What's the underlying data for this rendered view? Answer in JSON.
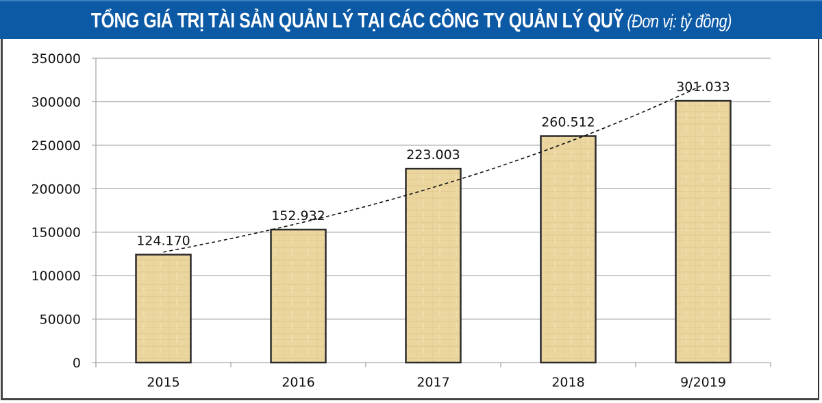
{
  "header": {
    "title": "TỔNG GIÁ TRỊ TÀI SẢN QUẢN LÝ TẠI CÁC CÔNG TY QUẢN LÝ QUỸ",
    "unit": "(Đơn vị: tỷ đồng)",
    "background_color": "#0c5aa6"
  },
  "chart_data": {
    "type": "bar",
    "title": "TỔNG GIÁ TRỊ TÀI SẢN QUẢN LÝ TẠI CÁC CÔNG TY QUẢN LÝ QUỸ",
    "subtitle": "(Đơn vị: tỷ đồng)",
    "categories": [
      "2015",
      "2016",
      "2017",
      "2018",
      "9/2019"
    ],
    "values": [
      124170,
      152932,
      223003,
      260512,
      301033
    ],
    "data_labels": [
      "124.170",
      "152.932",
      "223.003",
      "260.512",
      "301.033"
    ],
    "xlabel": "",
    "ylabel": "",
    "ylim": [
      0,
      350000
    ],
    "yticks": [
      0,
      50000,
      100000,
      150000,
      200000,
      250000,
      300000,
      350000
    ],
    "ytick_labels": [
      "0",
      "50000",
      "100000",
      "150000",
      "200000",
      "250000",
      "300000",
      "350000"
    ],
    "grid": true,
    "legend": "none",
    "trendline": {
      "type": "exponential",
      "style": "dashed",
      "color": "#111111"
    },
    "bar_color": "#ecd6a0",
    "bar_border_color": "#2a2a2a"
  }
}
